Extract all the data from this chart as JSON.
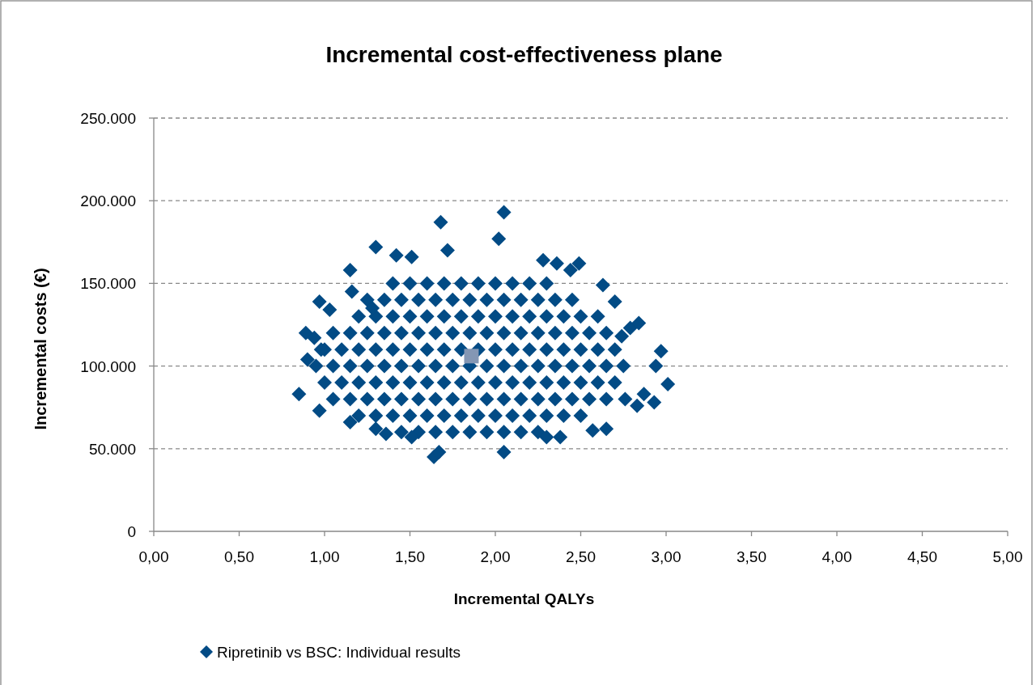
{
  "chart_data": {
    "type": "scatter",
    "title": "Incremental cost-effectiveness plane",
    "xlabel": "Incremental QALYs",
    "ylabel": "Incremental costs (€)",
    "xlim": [
      0,
      5
    ],
    "xticks": [
      {
        "value": 0,
        "label": "0,00"
      },
      {
        "value": 0.5,
        "label": "0,50"
      },
      {
        "value": 1,
        "label": "1,00"
      },
      {
        "value": 1.5,
        "label": "1,50"
      },
      {
        "value": 2,
        "label": "2,00"
      },
      {
        "value": 2.5,
        "label": "2,50"
      },
      {
        "value": 3,
        "label": "3,00"
      },
      {
        "value": 3.5,
        "label": "3,50"
      },
      {
        "value": 4,
        "label": "4,00"
      },
      {
        "value": 4.5,
        "label": "4,50"
      },
      {
        "value": 5,
        "label": "5,00"
      }
    ],
    "ylim": [
      0,
      250000
    ],
    "yticks": [
      0,
      {
        "value": 50000,
        "label": "50.000"
      },
      {
        "value": 100000,
        "label": "100.000"
      },
      {
        "value": 150000,
        "label": "150.000"
      },
      {
        "value": 200000,
        "label": "200.000"
      },
      {
        "value": 250000,
        "label": "250.000"
      }
    ],
    "grid": "y",
    "legend": "bottom",
    "line_style": "dashed",
    "series": [
      {
        "name": "Ripretinib vs BSC: Individual results",
        "color": "#024b85",
        "marker": "diamond",
        "x": [
          1.4,
          1.5,
          1.6,
          1.7,
          1.8,
          1.9,
          2.0,
          2.1,
          2.2,
          2.3,
          1.25,
          1.35,
          1.45,
          1.55,
          1.65,
          1.75,
          1.85,
          1.95,
          2.05,
          2.15,
          2.25,
          2.35,
          2.45,
          1.2,
          1.3,
          1.4,
          1.5,
          1.6,
          1.7,
          1.8,
          1.9,
          2.0,
          2.1,
          2.2,
          2.3,
          2.4,
          2.5,
          2.6,
          1.05,
          1.15,
          1.25,
          1.35,
          1.45,
          1.55,
          1.65,
          1.75,
          1.85,
          1.95,
          2.05,
          2.15,
          2.25,
          2.35,
          2.45,
          2.55,
          2.65,
          1.0,
          1.1,
          1.2,
          1.3,
          1.4,
          1.5,
          1.6,
          1.7,
          1.8,
          1.9,
          2.0,
          2.1,
          2.2,
          2.3,
          2.4,
          2.5,
          2.6,
          2.7,
          0.95,
          1.05,
          1.15,
          1.25,
          1.35,
          1.45,
          1.55,
          1.65,
          1.75,
          1.85,
          1.95,
          2.05,
          2.15,
          2.25,
          2.35,
          2.45,
          2.55,
          2.65,
          2.75,
          1.0,
          1.1,
          1.2,
          1.3,
          1.4,
          1.5,
          1.6,
          1.7,
          1.8,
          1.9,
          2.0,
          2.1,
          2.2,
          2.3,
          2.4,
          2.5,
          2.6,
          2.7,
          1.05,
          1.15,
          1.25,
          1.35,
          1.45,
          1.55,
          1.65,
          1.75,
          1.85,
          1.95,
          2.05,
          2.15,
          2.25,
          2.35,
          2.45,
          2.55,
          2.65,
          1.2,
          1.3,
          1.4,
          1.5,
          1.6,
          1.7,
          1.8,
          1.9,
          2.0,
          2.1,
          2.2,
          2.3,
          2.4,
          2.5,
          1.45,
          1.55,
          1.65,
          1.75,
          1.85,
          1.95,
          2.05,
          2.15,
          2.25,
          0.85,
          0.89,
          0.9,
          0.97,
          0.97,
          0.94,
          1.03,
          1.15,
          1.15,
          1.3,
          1.42,
          1.68,
          2.05,
          2.02,
          1.64,
          1.67,
          2.05,
          1.51,
          1.72,
          2.28,
          2.36,
          2.49,
          2.44,
          2.63,
          2.7,
          2.79,
          2.84,
          2.74,
          2.97,
          3.01,
          2.93,
          2.83,
          2.76,
          2.65,
          2.57,
          2.38,
          2.3,
          1.51,
          1.3,
          1.36,
          2.87,
          2.94,
          1.28,
          1.16,
          0.98
        ],
        "values": [
          150000,
          150000,
          150000,
          150000,
          150000,
          150000,
          150000,
          150000,
          150000,
          150000,
          140000,
          140000,
          140000,
          140000,
          140000,
          140000,
          140000,
          140000,
          140000,
          140000,
          140000,
          140000,
          140000,
          130000,
          130000,
          130000,
          130000,
          130000,
          130000,
          130000,
          130000,
          130000,
          130000,
          130000,
          130000,
          130000,
          130000,
          130000,
          120000,
          120000,
          120000,
          120000,
          120000,
          120000,
          120000,
          120000,
          120000,
          120000,
          120000,
          120000,
          120000,
          120000,
          120000,
          120000,
          120000,
          110000,
          110000,
          110000,
          110000,
          110000,
          110000,
          110000,
          110000,
          110000,
          110000,
          110000,
          110000,
          110000,
          110000,
          110000,
          110000,
          110000,
          110000,
          100000,
          100000,
          100000,
          100000,
          100000,
          100000,
          100000,
          100000,
          100000,
          100000,
          100000,
          100000,
          100000,
          100000,
          100000,
          100000,
          100000,
          100000,
          100000,
          90000,
          90000,
          90000,
          90000,
          90000,
          90000,
          90000,
          90000,
          90000,
          90000,
          90000,
          90000,
          90000,
          90000,
          90000,
          90000,
          90000,
          90000,
          80000,
          80000,
          80000,
          80000,
          80000,
          80000,
          80000,
          80000,
          80000,
          80000,
          80000,
          80000,
          80000,
          80000,
          80000,
          80000,
          80000,
          70000,
          70000,
          70000,
          70000,
          70000,
          70000,
          70000,
          70000,
          70000,
          70000,
          70000,
          70000,
          70000,
          70000,
          60000,
          60000,
          60000,
          60000,
          60000,
          60000,
          60000,
          60000,
          60000,
          83000,
          120000,
          104000,
          139000,
          73000,
          117000,
          134000,
          66000,
          158000,
          172000,
          167000,
          187000,
          193000,
          177000,
          45000,
          48000,
          48000,
          166000,
          170000,
          164000,
          162000,
          162000,
          158000,
          149000,
          139000,
          123000,
          126000,
          118000,
          109000,
          89000,
          78000,
          76000,
          80000,
          62000,
          61000,
          57000,
          57000,
          57000,
          62000,
          59000,
          83000,
          100000,
          135000,
          145000,
          110000
        ]
      },
      {
        "color": "#8497b4",
        "marker": "square",
        "x": [
          1.86
        ],
        "values": [
          106000
        ]
      }
    ]
  }
}
